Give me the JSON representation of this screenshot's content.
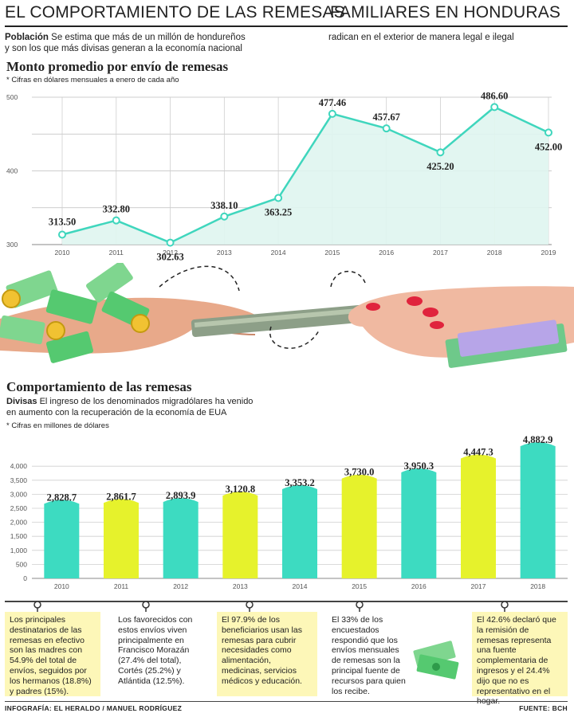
{
  "header": {
    "title_left": "EL COMPORTAMIENTO DE LAS REMESAS",
    "title_right": "FAMILIARES EN HONDURAS"
  },
  "intro": {
    "label": "Población",
    "text_line1": "Se estima que más de un millón de hondureños",
    "text_line2": "y son los que más divisas generan a la economía nacional",
    "text_right": "radican en el exterior de manera legal e ilegal"
  },
  "line_section": {
    "title": "Monto promedio por envío de remesas",
    "note": "* Cifras en dólares mensuales a enero de cada año"
  },
  "bar_section": {
    "title": "Comportamiento de las remesas",
    "label": "Divisas",
    "text_line1": "El ingreso de los denominados migradólares ha venido",
    "text_line2": "en aumento con la recuperación de la economía de EUA",
    "note": "* Cifras en millones de dólares"
  },
  "chart_data": [
    {
      "type": "line",
      "title": "Monto promedio por envío de remesas",
      "x": [
        "2010",
        "2011",
        "2012",
        "2013",
        "2014",
        "2015",
        "2016",
        "2017",
        "2018",
        "2019"
      ],
      "series": [
        {
          "values": [
            313.5,
            332.8,
            302.63,
            338.1,
            363.25,
            477.46,
            457.67,
            425.2,
            486.6,
            452.0
          ]
        }
      ],
      "value_labels": [
        "313.50",
        "332.80",
        "302.63",
        "338.10",
        "363.25",
        "477.46",
        "457.67",
        "425.20",
        "486.60",
        "452.00"
      ],
      "yticks": [
        "500",
        "400",
        "300"
      ],
      "ylim": [
        300,
        500
      ],
      "grid": true,
      "colors": {
        "line": "#3fd6bd",
        "fill": "#dff5f0",
        "marker": "#ffffff"
      }
    },
    {
      "type": "bar",
      "title": "Comportamiento de las remesas",
      "categories": [
        "2010",
        "2011",
        "2012",
        "2013",
        "2014",
        "2015",
        "2016",
        "2017",
        "2018"
      ],
      "values": [
        2828.7,
        2861.7,
        2893.9,
        3120.8,
        3353.2,
        3730.0,
        3950.3,
        4447.3,
        4882.9
      ],
      "value_labels": [
        "2,828.7",
        "2,861.7",
        "2,893.9",
        "3,120.8",
        "3,353.2",
        "3,730.0",
        "3,950.3",
        "4,447.3",
        "4,882.9"
      ],
      "yticks": [
        "4,000",
        "3,500",
        "3,000",
        "2,500",
        "2,000",
        "1,500",
        "1,000",
        "500",
        "0"
      ],
      "ylim": [
        0,
        5000
      ],
      "grid": true,
      "colors": [
        "#3ddbc1",
        "#e6f22c",
        "#3ddbc1",
        "#e6f22c",
        "#3ddbc1",
        "#e6f22c",
        "#3ddbc1",
        "#e6f22c",
        "#3ddbc1"
      ]
    }
  ],
  "facts": [
    {
      "text": "Los principales destinatarios de las remesas en efectivo son las madres con 54.9% del total de envíos, seguidos por los hermanos (18.8%) y padres (15%)."
    },
    {
      "text": "Los favorecidos con estos envíos viven principalmente en Francisco Morazán (27.4% del total), Cortés (25.2%) y Atlántida (12.5%)."
    },
    {
      "text": "El 97.9% de los beneficiarios usan las remesas para cubrir necesidades como alimentación, medicinas, servicios médicos y educación."
    },
    {
      "text": "El 33% de los encuestados respondió que los envíos mensuales de remesas son la principal fuente de recursos para quien los recibe."
    },
    {
      "text": "El 42.6% declaró que la remisión de remesas representa una fuente complementaria de ingresos y el 24.4% dijo que no es representativo en el hogar."
    }
  ],
  "footer": {
    "credit": "INFOGRAFÍA: EL HERALDO / MANUEL RODRÍGUEZ",
    "source": "FUENTE: BCH"
  }
}
